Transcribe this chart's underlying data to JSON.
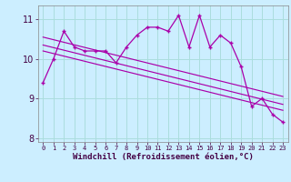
{
  "title": "",
  "xlabel": "Windchill (Refroidissement éolien,°C)",
  "ylabel": "",
  "bg_color": "#cceeff",
  "line_color": "#aa00aa",
  "grid_color": "#aadddd",
  "hours": [
    0,
    1,
    2,
    3,
    4,
    5,
    6,
    7,
    8,
    9,
    10,
    11,
    12,
    13,
    14,
    15,
    16,
    17,
    18,
    19,
    20,
    21,
    22,
    23
  ],
  "values": [
    9.4,
    10.0,
    10.7,
    10.3,
    10.2,
    10.2,
    10.2,
    9.9,
    10.3,
    10.6,
    10.8,
    10.8,
    10.7,
    11.1,
    10.3,
    11.1,
    10.3,
    10.6,
    10.4,
    9.8,
    8.8,
    9.0,
    8.6,
    8.4
  ],
  "ylim": [
    7.9,
    11.35
  ],
  "yticks": [
    8,
    9,
    10,
    11
  ],
  "xlim": [
    -0.5,
    23.5
  ],
  "trend1_x": [
    0,
    23
  ],
  "trend1_y_start": 10.55,
  "trend1_y_end": 9.05,
  "trend2_x": [
    0,
    23
  ],
  "trend2_y_start": 10.35,
  "trend2_y_end": 8.85,
  "trend3_x": [
    0,
    23
  ],
  "trend3_y_start": 10.2,
  "trend3_y_end": 8.7
}
